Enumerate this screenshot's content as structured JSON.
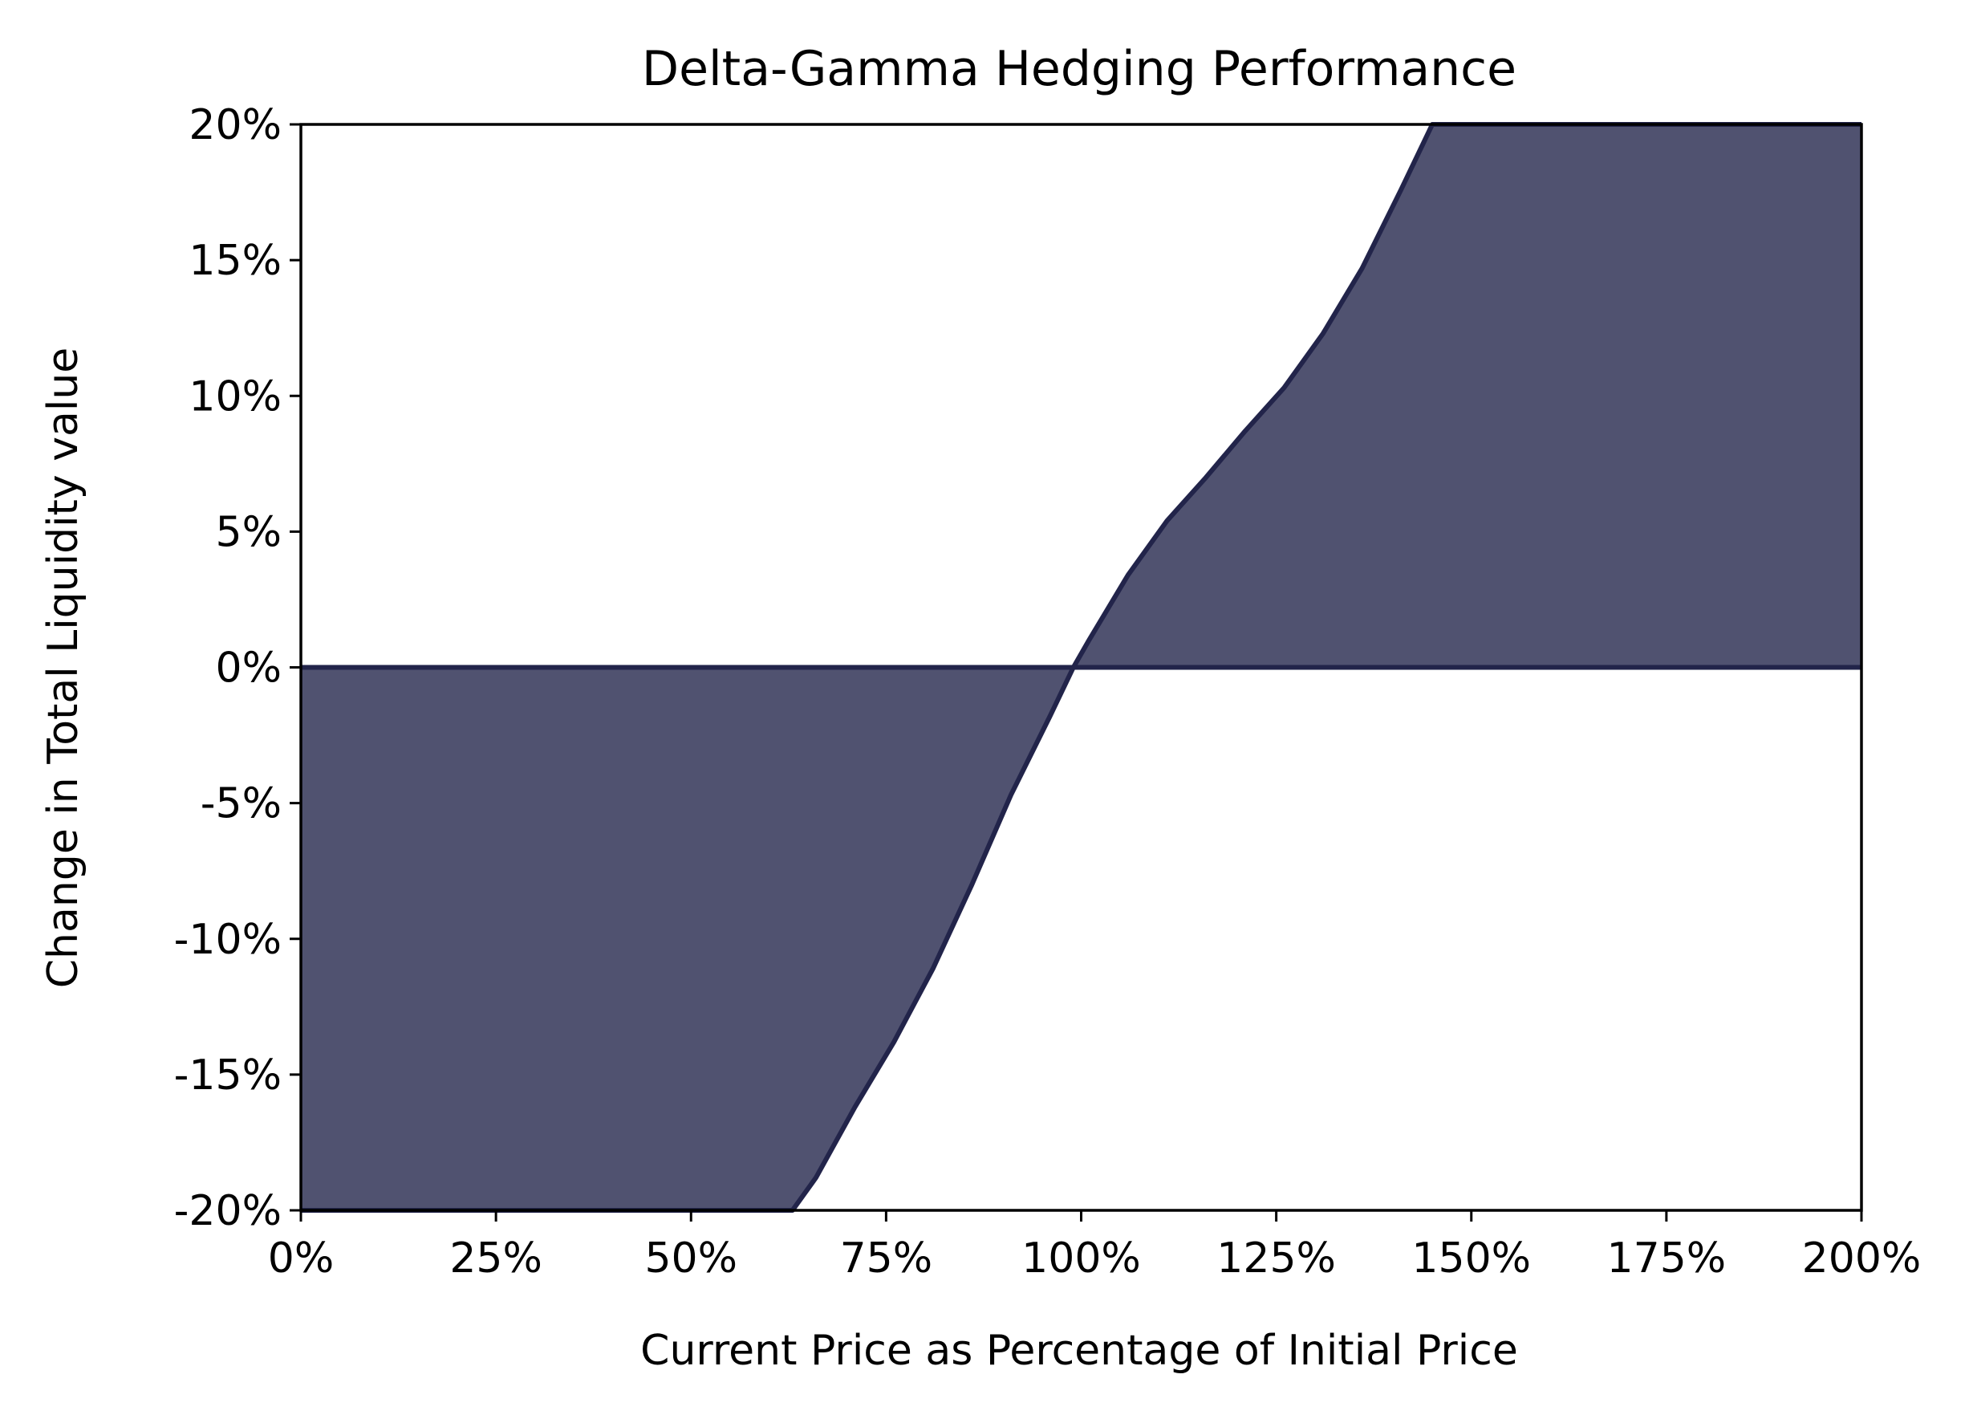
{
  "chart_data": {
    "type": "area",
    "title": "Delta-Gamma Hedging Performance",
    "xlabel": "Current Price as Percentage of Initial Price",
    "ylabel": "Change in Total Liquidity value",
    "xlim": [
      0,
      200
    ],
    "ylim": [
      -20,
      20
    ],
    "x_ticks": [
      0,
      25,
      50,
      75,
      100,
      125,
      150,
      175,
      200
    ],
    "x_tick_labels": [
      "0%",
      "25%",
      "50%",
      "75%",
      "100%",
      "125%",
      "150%",
      "175%",
      "200%"
    ],
    "y_ticks": [
      20,
      15,
      10,
      5,
      0,
      -5,
      -10,
      -15,
      -20
    ],
    "y_tick_labels": [
      "20%",
      "15%",
      "10%",
      "5%",
      "0%",
      "-5%",
      "-10%",
      "-15%",
      "-20%"
    ],
    "grid": false,
    "fill_color": "#505270",
    "line_color": "#22244a",
    "fill_between_baseline": 0,
    "series": [
      {
        "x": [
          0,
          63,
          66,
          71,
          76,
          81,
          86,
          91,
          96,
          99,
          101,
          106,
          111,
          116,
          121,
          126,
          131,
          136,
          141,
          145,
          150,
          200
        ],
        "y": [
          -20,
          -20,
          -18.8,
          -16.2,
          -13.8,
          -11.1,
          -8.0,
          -4.7,
          -1.8,
          0,
          1.0,
          3.4,
          5.4,
          7.0,
          8.7,
          10.3,
          12.3,
          14.7,
          17.6,
          20,
          20,
          20
        ]
      }
    ]
  }
}
